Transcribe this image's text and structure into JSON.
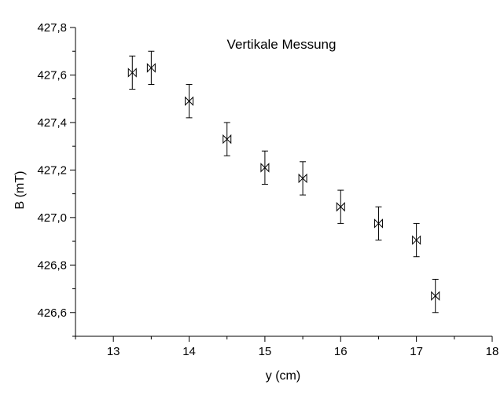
{
  "chart_data": {
    "type": "scatter",
    "title": "Vertikale Messung",
    "xlabel": "y (cm)",
    "ylabel": "B (mT)",
    "xlim": [
      12.5,
      18
    ],
    "ylim": [
      426.5,
      427.8
    ],
    "x_ticks": [
      13,
      14,
      15,
      16,
      17,
      18
    ],
    "x_tick_labels": [
      "13",
      "14",
      "15",
      "16",
      "17",
      "18"
    ],
    "y_ticks": [
      426.6,
      426.8,
      427.0,
      427.2,
      427.4,
      427.6,
      427.8
    ],
    "y_tick_labels": [
      "426,6",
      "426,8",
      "427,0",
      "427,2",
      "427,4",
      "427,6",
      "427,8"
    ],
    "grid": false,
    "marker": "bowtie",
    "series": [
      {
        "points": [
          {
            "x": 13.25,
            "y": 427.61,
            "err": 0.07
          },
          {
            "x": 13.5,
            "y": 427.63,
            "err": 0.07
          },
          {
            "x": 14.0,
            "y": 427.49,
            "err": 0.07
          },
          {
            "x": 14.5,
            "y": 427.33,
            "err": 0.07
          },
          {
            "x": 15.0,
            "y": 427.21,
            "err": 0.07
          },
          {
            "x": 15.5,
            "y": 427.165,
            "err": 0.07
          },
          {
            "x": 16.0,
            "y": 427.045,
            "err": 0.07
          },
          {
            "x": 16.5,
            "y": 426.975,
            "err": 0.07
          },
          {
            "x": 17.0,
            "y": 426.905,
            "err": 0.07
          },
          {
            "x": 17.25,
            "y": 426.67,
            "err": 0.07
          }
        ]
      }
    ]
  }
}
